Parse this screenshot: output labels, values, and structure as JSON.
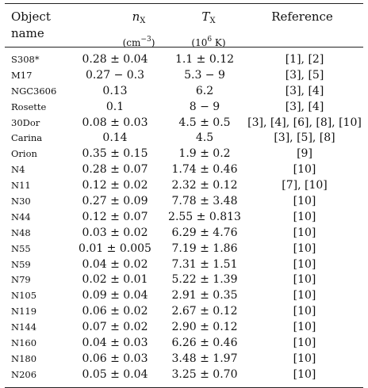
{
  "header": {
    "object_line1": "Object",
    "object_line2": "name",
    "n_symbol": "n",
    "n_sub": "X",
    "n_unit_prefix": "(cm",
    "n_unit_sup": "−3",
    "n_unit_suffix": ")",
    "t_symbol": "T",
    "t_sub": "X",
    "t_unit_prefix": "(10",
    "t_unit_sup": "6",
    "t_unit_suffix": " K)",
    "reference": "Reference"
  },
  "rows": [
    {
      "name": "S308*",
      "n": "0.28 ± 0.04",
      "t": "1.1 ± 0.12",
      "ref": "[1], [2]"
    },
    {
      "name": "M17",
      "n": "0.27 − 0.3",
      "t": "5.3 − 9",
      "ref": "[3], [5]"
    },
    {
      "name": "NGC3606",
      "n": "0.13",
      "t": "6.2",
      "ref": "[3], [4]"
    },
    {
      "name": "Rosette",
      "n": "0.1",
      "t": "8 − 9",
      "ref": "[3], [4]"
    },
    {
      "name": "30Dor",
      "n": "0.08 ± 0.03",
      "t": "4.5 ± 0.5",
      "ref": "[3], [4], [6], [8], [10]"
    },
    {
      "name": "Carina",
      "n": "0.14",
      "t": "4.5",
      "ref": "[3], [5], [8]"
    },
    {
      "name": "Orion",
      "n": "0.35 ± 0.15",
      "t": "1.9 ± 0.2",
      "ref": "[9]"
    },
    {
      "name": "N4",
      "n": "0.28 ± 0.07",
      "t": "1.74 ± 0.46",
      "ref": "[10]"
    },
    {
      "name": "N11",
      "n": "0.12 ± 0.02",
      "t": "2.32 ± 0.12",
      "ref": "[7], [10]"
    },
    {
      "name": "N30",
      "n": "0.27 ± 0.09",
      "t": "7.78 ± 3.48",
      "ref": "[10]"
    },
    {
      "name": "N44",
      "n": "0.12 ± 0.07",
      "t": "2.55 ± 0.813",
      "ref": "[10]"
    },
    {
      "name": "N48",
      "n": "0.03 ± 0.02",
      "t": "6.29 ± 4.76",
      "ref": "[10]"
    },
    {
      "name": "N55",
      "n": "0.01 ± 0.005",
      "t": "7.19 ± 1.86",
      "ref": "[10]"
    },
    {
      "name": "N59",
      "n": "0.04 ± 0.02",
      "t": "7.31 ± 1.51",
      "ref": "[10]"
    },
    {
      "name": "N79",
      "n": "0.02 ± 0.01",
      "t": "5.22 ± 1.39",
      "ref": "[10]"
    },
    {
      "name": "N105",
      "n": "0.09 ± 0.04",
      "t": "2.91 ± 0.35",
      "ref": "[10]"
    },
    {
      "name": "N119",
      "n": "0.06 ± 0.02",
      "t": "2.67 ± 0.12",
      "ref": "[10]"
    },
    {
      "name": "N144",
      "n": "0.07 ± 0.02",
      "t": "2.90 ± 0.12",
      "ref": "[10]"
    },
    {
      "name": "N160",
      "n": "0.04 ± 0.03",
      "t": "6.26 ± 0.46",
      "ref": "[10]"
    },
    {
      "name": "N180",
      "n": "0.06 ± 0.03",
      "t": "3.48 ± 1.97",
      "ref": "[10]"
    },
    {
      "name": "N206",
      "n": "0.05 ± 0.04",
      "t": "3.25 ± 0.70",
      "ref": "[10]"
    }
  ]
}
